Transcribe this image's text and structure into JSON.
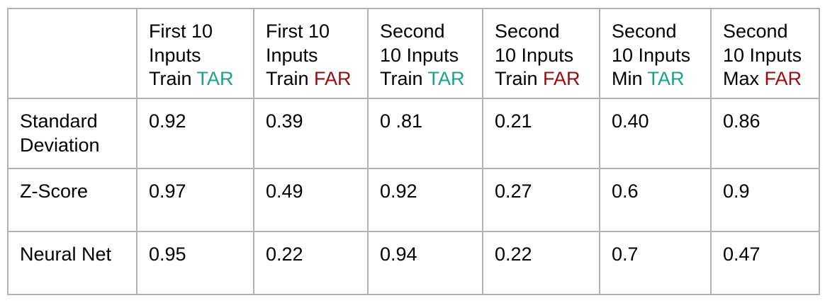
{
  "colors": {
    "tar": "#1aa38c",
    "far": "#9c0b0b",
    "border": "#b2b2b2",
    "text": "#000000"
  },
  "table": {
    "corner": "",
    "headers": [
      {
        "line1": "First 10",
        "line2": "Inputs",
        "prefix": "Train",
        "metric": "TAR"
      },
      {
        "line1": "First 10",
        "line2": "Inputs",
        "prefix": "Train",
        "metric": "FAR"
      },
      {
        "line1": "Second",
        "line2": "10 Inputs",
        "prefix": "Train",
        "metric": "TAR"
      },
      {
        "line1": "Second",
        "line2": "10 Inputs",
        "prefix": "Train",
        "metric": "FAR"
      },
      {
        "line1": "Second",
        "line2": "10 Inputs",
        "prefix": "Min",
        "metric": "TAR"
      },
      {
        "line1": "Second",
        "line2": "10 Inputs",
        "prefix": "Max",
        "metric": "FAR"
      }
    ],
    "rows": [
      {
        "label_line1": "Standard",
        "label_line2": "Deviation",
        "values": [
          "0.92",
          "0.39",
          "0 .81",
          "0.21",
          "0.40",
          "0.86"
        ]
      },
      {
        "label_line1": "Z-Score",
        "label_line2": "",
        "values": [
          "0.97",
          "0.49",
          "0.92",
          "0.27",
          "0.6",
          "0.9"
        ]
      },
      {
        "label_line1": "Neural Net",
        "label_line2": "",
        "values": [
          "0.95",
          "0.22",
          "0.94",
          "0.22",
          "0.7",
          "0.47"
        ]
      }
    ]
  }
}
